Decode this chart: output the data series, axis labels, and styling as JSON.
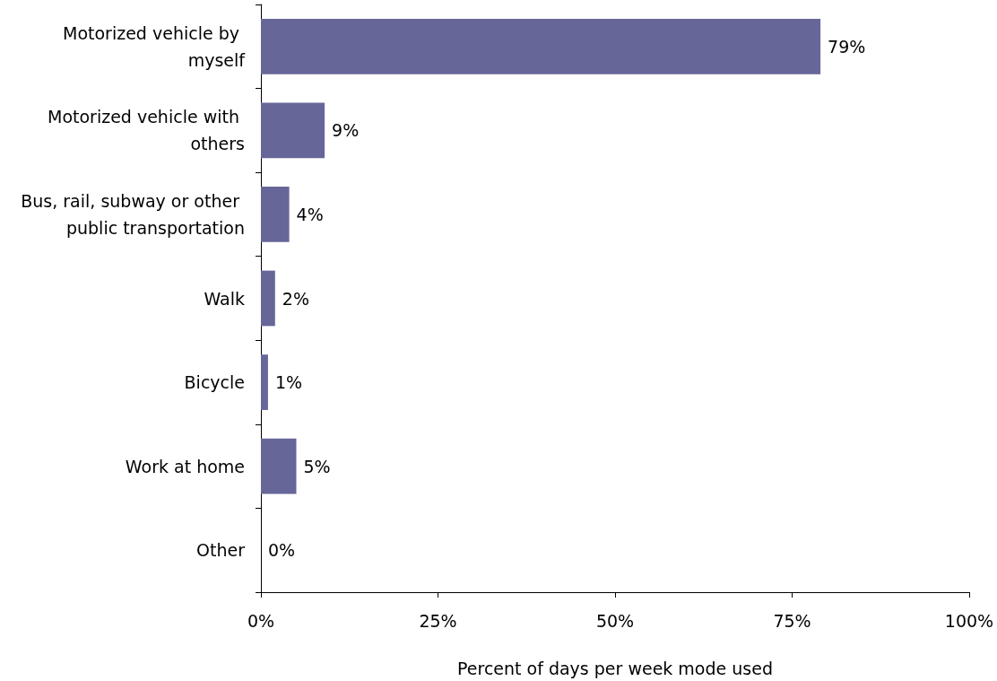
{
  "chart_data": {
    "type": "bar",
    "orientation": "horizontal",
    "xlabel": "Percent of days per week mode used",
    "categories": [
      "Motorized vehicle by myself",
      "Motorized vehicle with others",
      "Bus, rail, subway or other public transportation",
      "Walk",
      "Bicycle",
      "Work at home",
      "Other"
    ],
    "values": [
      79,
      9,
      4,
      2,
      1,
      5,
      0
    ],
    "value_labels": [
      "79%",
      "9%",
      "4%",
      "2%",
      "1%",
      "5%",
      "0%"
    ],
    "color": "#666699",
    "xlim": [
      0,
      100
    ],
    "xticks": [
      {
        "value": 0,
        "label": "0%"
      },
      {
        "value": 25,
        "label": "25%"
      },
      {
        "value": 50,
        "label": "50%"
      },
      {
        "value": 75,
        "label": "75%"
      },
      {
        "value": 100,
        "label": "100%"
      }
    ],
    "grid": false
  }
}
